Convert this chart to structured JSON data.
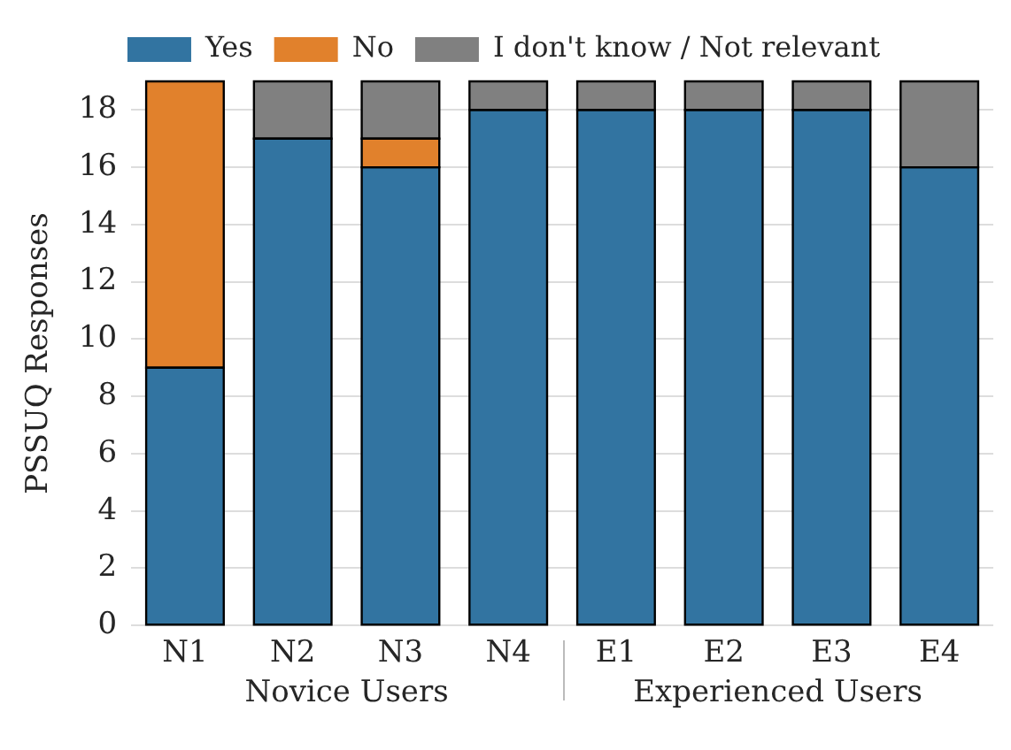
{
  "chart_data": {
    "type": "bar",
    "ylabel": "PSSUQ Responses",
    "categories": [
      "N1",
      "N2",
      "N3",
      "N4",
      "E1",
      "E2",
      "E3",
      "E4"
    ],
    "stacked": true,
    "series": [
      {
        "name": "Yes",
        "color": "#3274a1",
        "values": [
          9,
          17,
          16,
          18,
          18,
          18,
          18,
          16
        ]
      },
      {
        "name": "No",
        "color": "#e1812c",
        "values": [
          10,
          0,
          1,
          0,
          0,
          0,
          0,
          0
        ]
      },
      {
        "name": "I don't know / Not relevant",
        "color": "#808080",
        "values": [
          0,
          2,
          2,
          1,
          1,
          1,
          1,
          3
        ]
      }
    ],
    "ylim": [
      0,
      19
    ],
    "yticks": [
      0,
      2,
      4,
      6,
      8,
      10,
      12,
      14,
      16,
      18
    ],
    "grid": "y",
    "legend": "top",
    "annotations": [
      "Novice Users",
      "Experienced Users"
    ]
  }
}
